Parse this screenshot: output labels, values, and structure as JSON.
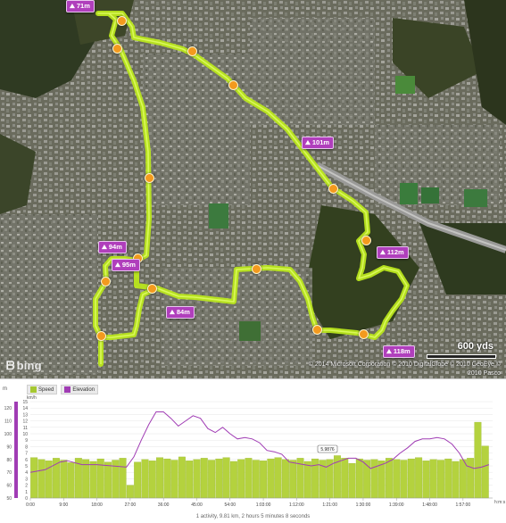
{
  "map": {
    "provider_logo": "bing",
    "scale_label": "600 yds",
    "copyright": "© 2014 Microsoft Corporation  © 2010 DigitalGlobe  © 2010 GeoEye  © 2010 Pasco",
    "elevation_tags": [
      "71m",
      "101m",
      "112m",
      "94m",
      "95m",
      "84m",
      "118m"
    ],
    "marker_icon": "waypoint-dot-icon",
    "route_color": "#c8f02a"
  },
  "chart": {
    "legend": [
      {
        "label": "Speed",
        "color": "#a6c832"
      },
      {
        "label": "Elevation",
        "color": "#a03cb4"
      }
    ],
    "left_axis_unit": "m",
    "right_axis_unit": "km/h",
    "bottom_axis_unit": "h:m:s",
    "marker_label": "5.9876",
    "summary": "1 activity, 9.81 km, 2 hours 5 minutes 8 seconds"
  },
  "chart_data": {
    "type": "bar",
    "xlabel": "",
    "ylabel": "",
    "x_ticks": [
      "0:00",
      "9:00",
      "18:00",
      "27:00",
      "36:00",
      "45:00",
      "54:00",
      "1:03:00",
      "1:12:00",
      "1:21:00",
      "1:30:00",
      "1:39:00",
      "1:48:00",
      "1:57:00"
    ],
    "elevation_ticks": [
      50,
      60,
      70,
      80,
      90,
      100,
      110,
      120
    ],
    "speed_ticks": [
      0,
      1,
      2,
      3,
      4,
      5,
      6,
      7,
      8,
      9,
      10,
      11,
      12,
      13,
      14,
      15
    ],
    "ylim_elevation": [
      50,
      125
    ],
    "ylim_speed": [
      0,
      15
    ],
    "xlim_minutes": [
      0,
      125
    ],
    "series": [
      {
        "name": "Speed",
        "x_minutes": [
          1,
          3,
          5,
          7,
          9,
          11,
          13,
          15,
          17,
          19,
          21,
          23,
          25,
          27,
          29,
          31,
          33,
          35,
          37,
          39,
          41,
          43,
          45,
          47,
          49,
          51,
          53,
          55,
          57,
          59,
          61,
          63,
          65,
          67,
          69,
          71,
          73,
          75,
          77,
          79,
          81,
          83,
          85,
          87,
          89,
          91,
          93,
          95,
          97,
          99,
          101,
          103,
          105,
          107,
          109,
          111,
          113,
          115,
          117,
          119,
          121,
          123
        ],
        "values": [
          6.3,
          6.0,
          5.8,
          6.2,
          5.9,
          5.5,
          6.2,
          6.0,
          5.7,
          6.1,
          5.6,
          5.9,
          6.2,
          2.0,
          5.6,
          6.0,
          5.8,
          6.3,
          6.1,
          5.9,
          6.4,
          5.8,
          6.0,
          6.2,
          5.9,
          6.1,
          6.3,
          5.7,
          6.0,
          6.2,
          5.9,
          5.8,
          6.1,
          6.3,
          6.0,
          5.9,
          6.2,
          5.7,
          6.1,
          5.9,
          6.0,
          6.6,
          6.2,
          5.4,
          6.1,
          5.9,
          6.0,
          5.8,
          6.2,
          6.0,
          5.9,
          6.1,
          6.3,
          5.8,
          6.0,
          5.9,
          6.1,
          5.7,
          6.0,
          6.2,
          11.8,
          8.1
        ]
      },
      {
        "name": "Elevation",
        "x_minutes": [
          0,
          4,
          8,
          10,
          14,
          18,
          22,
          26,
          28,
          30,
          32,
          34,
          36,
          38,
          40,
          42,
          44,
          46,
          48,
          50,
          52,
          54,
          56,
          58,
          60,
          62,
          64,
          66,
          68,
          70,
          72,
          74,
          76,
          78,
          80,
          82,
          84,
          86,
          88,
          90,
          92,
          94,
          96,
          98,
          100,
          102,
          104,
          106,
          108,
          110,
          112,
          114,
          116,
          118,
          120,
          122,
          124
        ],
        "values": [
          70,
          72,
          78,
          79,
          76,
          76,
          75,
          74,
          82,
          95,
          107,
          117,
          117,
          112,
          106,
          110,
          114,
          112,
          104,
          101,
          105,
          100,
          96,
          97,
          96,
          93,
          87,
          86,
          84,
          78,
          77,
          76,
          75,
          76,
          74,
          77,
          79,
          81,
          81,
          78,
          73,
          75,
          77,
          80,
          85,
          89,
          94,
          96,
          96,
          97,
          96,
          92,
          85,
          75,
          73,
          74,
          76
        ]
      }
    ],
    "annotations": [
      "5.9876"
    ]
  }
}
